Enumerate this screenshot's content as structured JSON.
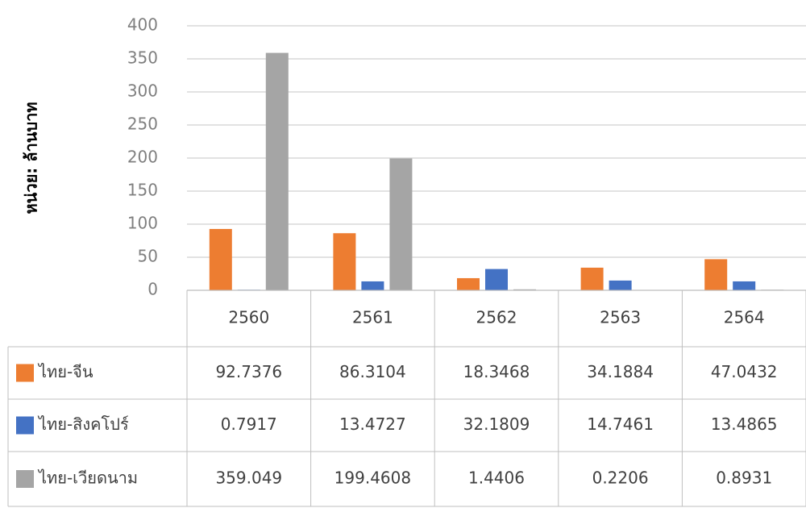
{
  "chart_data": {
    "type": "bar",
    "y_label": "หน่วย: ล้านบาท",
    "categories": [
      "2560",
      "2561",
      "2562",
      "2563",
      "2564"
    ],
    "series": [
      {
        "name": "ไทย-จีน",
        "color": "#ed7d31",
        "values": [
          92.7376,
          86.3104,
          18.3468,
          34.1884,
          47.0432
        ]
      },
      {
        "name": "ไทย-สิงคโปร์",
        "color": "#4472c4",
        "values": [
          0.7917,
          13.4727,
          32.1809,
          14.7461,
          13.4865
        ]
      },
      {
        "name": "ไทย-เวียดนาม",
        "color": "#a5a5a5",
        "values": [
          359.049,
          199.4608,
          1.4406,
          0.2206,
          0.8931
        ]
      }
    ],
    "ylim": [
      0,
      400
    ],
    "yticks": [
      0,
      50,
      100,
      150,
      200,
      250,
      300,
      350,
      400
    ],
    "grid": true
  }
}
